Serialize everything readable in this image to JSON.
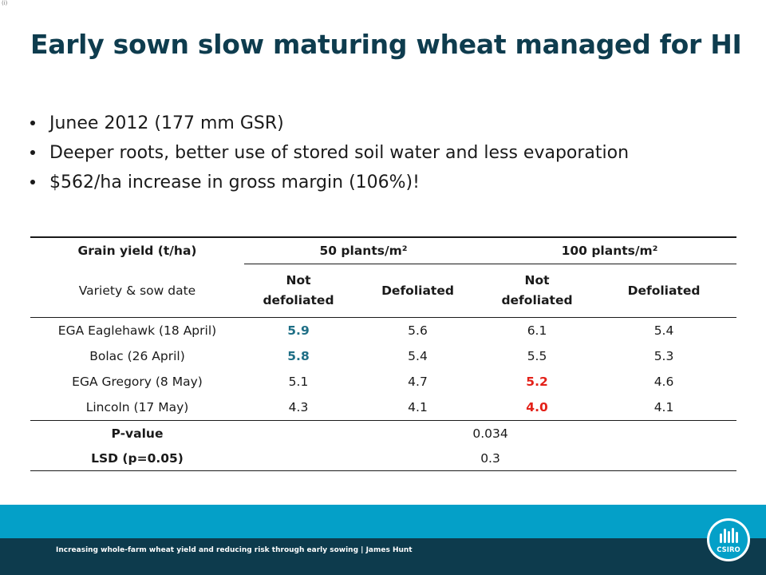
{
  "corner_mark": "(i)",
  "title": "Early sown slow maturing wheat managed for HI",
  "bullets": [
    "Junee 2012 (177 mm GSR)",
    "Deeper roots, better use of stored soil water and less evaporation",
    "$562/ha increase in gross margin (106%)!"
  ],
  "table": {
    "header1": "Grain yield (t/ha)",
    "group1": "50 plants/m²",
    "group2": "100 plants/m²",
    "header2": "Variety & sow date",
    "sub_not_1": "Not",
    "sub_not_2": "defoliated",
    "sub_def": "Defoliated",
    "rows": [
      {
        "variety": "EGA Eaglehawk (18 April)",
        "c1": "5.9",
        "c2": "5.6",
        "c3": "6.1",
        "c4": "5.4"
      },
      {
        "variety": "Bolac (26 April)",
        "c1": "5.8",
        "c2": "5.4",
        "c3": "5.5",
        "c4": "5.3"
      },
      {
        "variety": "EGA Gregory (8 May)",
        "c1": "5.1",
        "c2": "4.7",
        "c3": "5.2",
        "c4": "4.6"
      },
      {
        "variety": "Lincoln (17 May)",
        "c1": "4.3",
        "c2": "4.1",
        "c3": "4.0",
        "c4": "4.1"
      }
    ],
    "pvalue_label": "P-value",
    "pvalue": "0.034",
    "lsd_label": "LSD (p=0.05)",
    "lsd": "0.3"
  },
  "footer": {
    "text": "Increasing whole-farm wheat yield and reducing risk through early sowing | James Hunt",
    "logo_text": "CSIRO"
  },
  "colors": {
    "title": "#0e3c4e",
    "highlight_blue": "#1f6f86",
    "highlight_red": "#e32119",
    "footer_cyan": "#04a0c8",
    "footer_navy": "#0d3b4d"
  }
}
